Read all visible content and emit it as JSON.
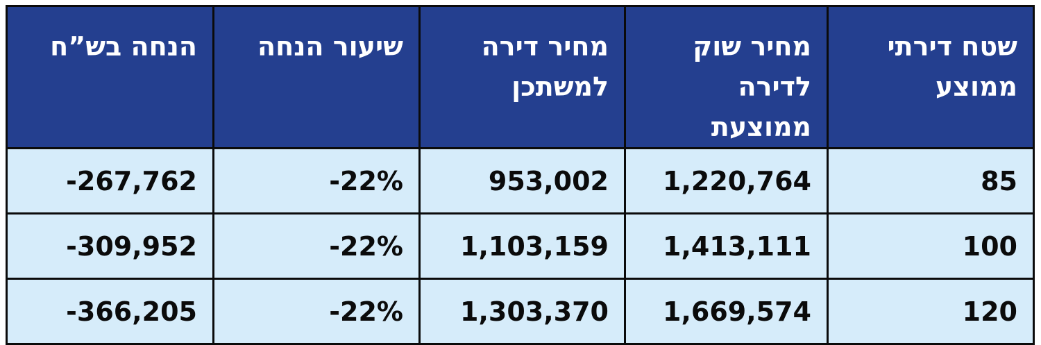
{
  "table": {
    "headers": [
      {
        "line1": "שטח דירתי",
        "line2": "ממוצע"
      },
      {
        "line1": "מחיר שוק",
        "line2": "לדירה ממוצעת"
      },
      {
        "line1": "מחיר דירה",
        "line2": "למשתכן"
      },
      {
        "line1": "שיעור הנחה",
        "line2": ""
      },
      {
        "line1": "הנחה בש”ח",
        "line2": ""
      }
    ],
    "rows": [
      [
        "85",
        "1,220,764",
        "953,002",
        "-22%",
        "-267,762"
      ],
      [
        "100",
        "1,413,111",
        "1,103,159",
        "-22%",
        "-309,952"
      ],
      [
        "120",
        "1,669,574",
        "1,303,370",
        "-22%",
        "-366,205"
      ]
    ]
  }
}
